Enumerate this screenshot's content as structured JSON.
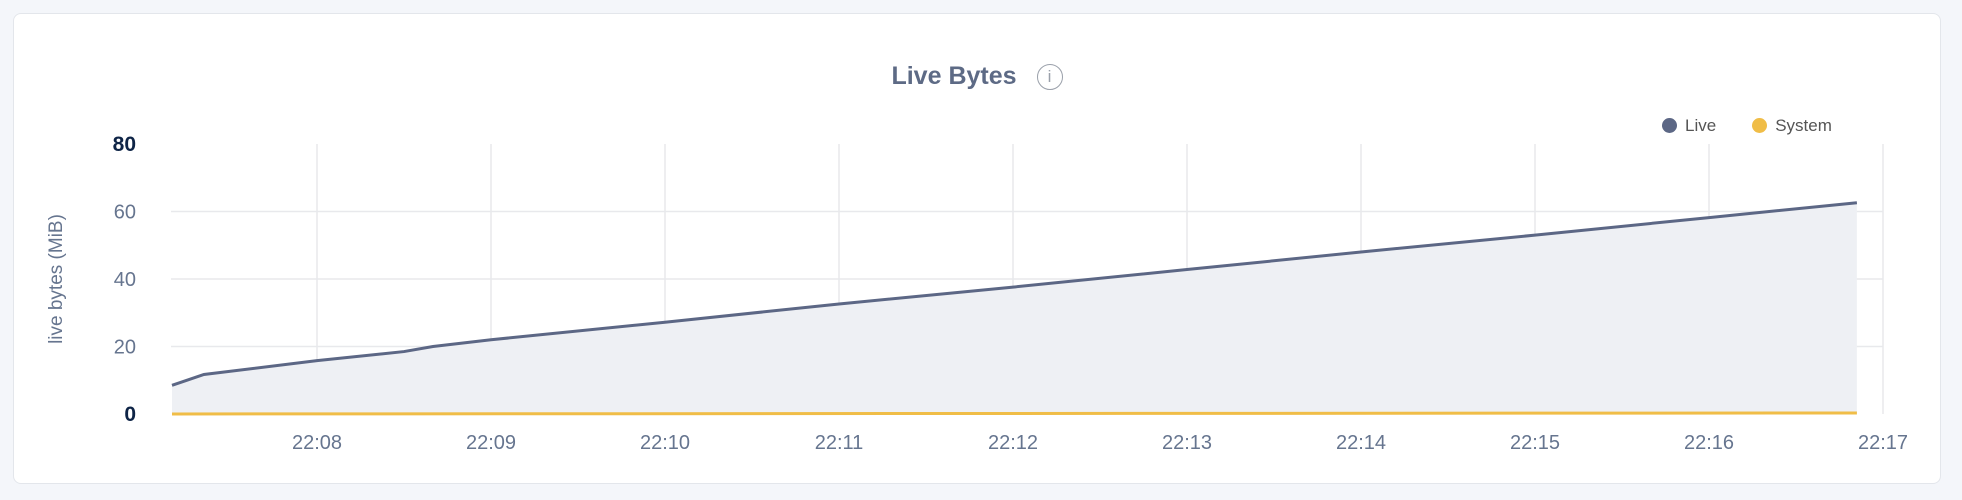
{
  "chart_data": {
    "type": "area",
    "title": "Live Bytes",
    "ylabel": "live bytes (MiB)",
    "xlabel": "",
    "ylim": [
      0,
      80
    ],
    "yticks": [
      0,
      20,
      40,
      60,
      80
    ],
    "xticks": [
      "22:08",
      "22:09",
      "22:10",
      "22:11",
      "22:12",
      "22:13",
      "22:14",
      "22:15",
      "22:16",
      "22:17"
    ],
    "grid": true,
    "legend_position": "top-right",
    "series": [
      {
        "name": "Live",
        "color": "#5c6785",
        "fill": "#eef0f4",
        "x": [
          "22:07:10",
          "22:07:21",
          "22:08:00",
          "22:08:30",
          "22:08:40",
          "22:09:00",
          "22:10:00",
          "22:11:00",
          "22:12:00",
          "22:13:00",
          "22:14:00",
          "22:15:00",
          "22:16:00",
          "22:16:51"
        ],
        "values": [
          8.5,
          11.7,
          15.8,
          18.5,
          20,
          22,
          27.2,
          32.6,
          37.6,
          42.8,
          48,
          53,
          58.2,
          62.6
        ]
      },
      {
        "name": "System",
        "color": "#f0bd47",
        "x": [
          "22:07:10",
          "22:16:51"
        ],
        "values": [
          0.6,
          0.9
        ]
      }
    ]
  },
  "info_icon": "info-icon"
}
